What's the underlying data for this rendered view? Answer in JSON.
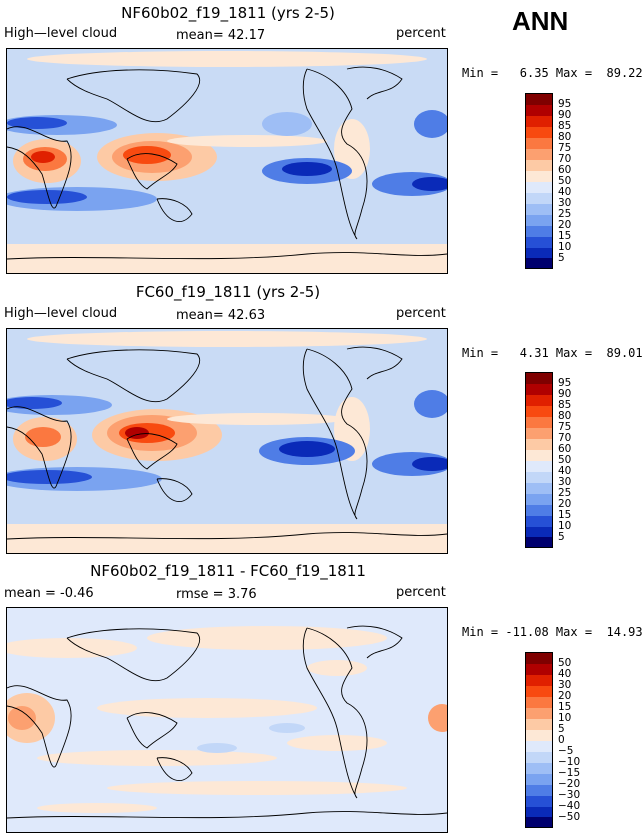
{
  "page_title": "ANN",
  "panels": [
    {
      "title": "NF60b02_f19_1811 (yrs 2-5)",
      "left_label": "High—level cloud",
      "center_label": "mean=  42.17",
      "units": "percent",
      "min_max": "Min =   6.35 Max =  89.22",
      "colorbar_ticks": [
        "95",
        "90",
        "85",
        "80",
        "75",
        "70",
        "60",
        "50",
        "40",
        "30",
        "25",
        "20",
        "15",
        "10",
        "5"
      ]
    },
    {
      "title": "FC60_f19_1811 (yrs 2-5)",
      "left_label": "High—level cloud",
      "center_label": "mean=  42.63",
      "units": "percent",
      "min_max": "Min =   4.31 Max =  89.01",
      "colorbar_ticks": [
        "95",
        "90",
        "85",
        "80",
        "75",
        "70",
        "60",
        "50",
        "40",
        "30",
        "25",
        "20",
        "15",
        "10",
        "5"
      ]
    },
    {
      "title": "NF60b02_f19_1811 - FC60_f19_1811",
      "left_label": "mean =  -0.46",
      "center_label": "rmse =   3.76",
      "units": "percent",
      "min_max": "Min = -11.08 Max =  14.93",
      "colorbar_ticks": [
        "50",
        "40",
        "30",
        "20",
        "15",
        "10",
        "5",
        "0",
        "−5",
        "−10",
        "−15",
        "−20",
        "−30",
        "−40",
        "−50"
      ]
    }
  ],
  "colors": {
    "scale": [
      "#7f0000",
      "#b00000",
      "#e02000",
      "#f84a10",
      "#fb7840",
      "#fca070",
      "#fdcaa5",
      "#fde8d6",
      "#dfe9fb",
      "#c2d7f8",
      "#9ebef5",
      "#7aa3f0",
      "#4f7de6",
      "#2650d6",
      "#0a2ab8",
      "#00006e"
    ],
    "base_blue": "#c6d9f5",
    "coast": "#000000"
  }
}
